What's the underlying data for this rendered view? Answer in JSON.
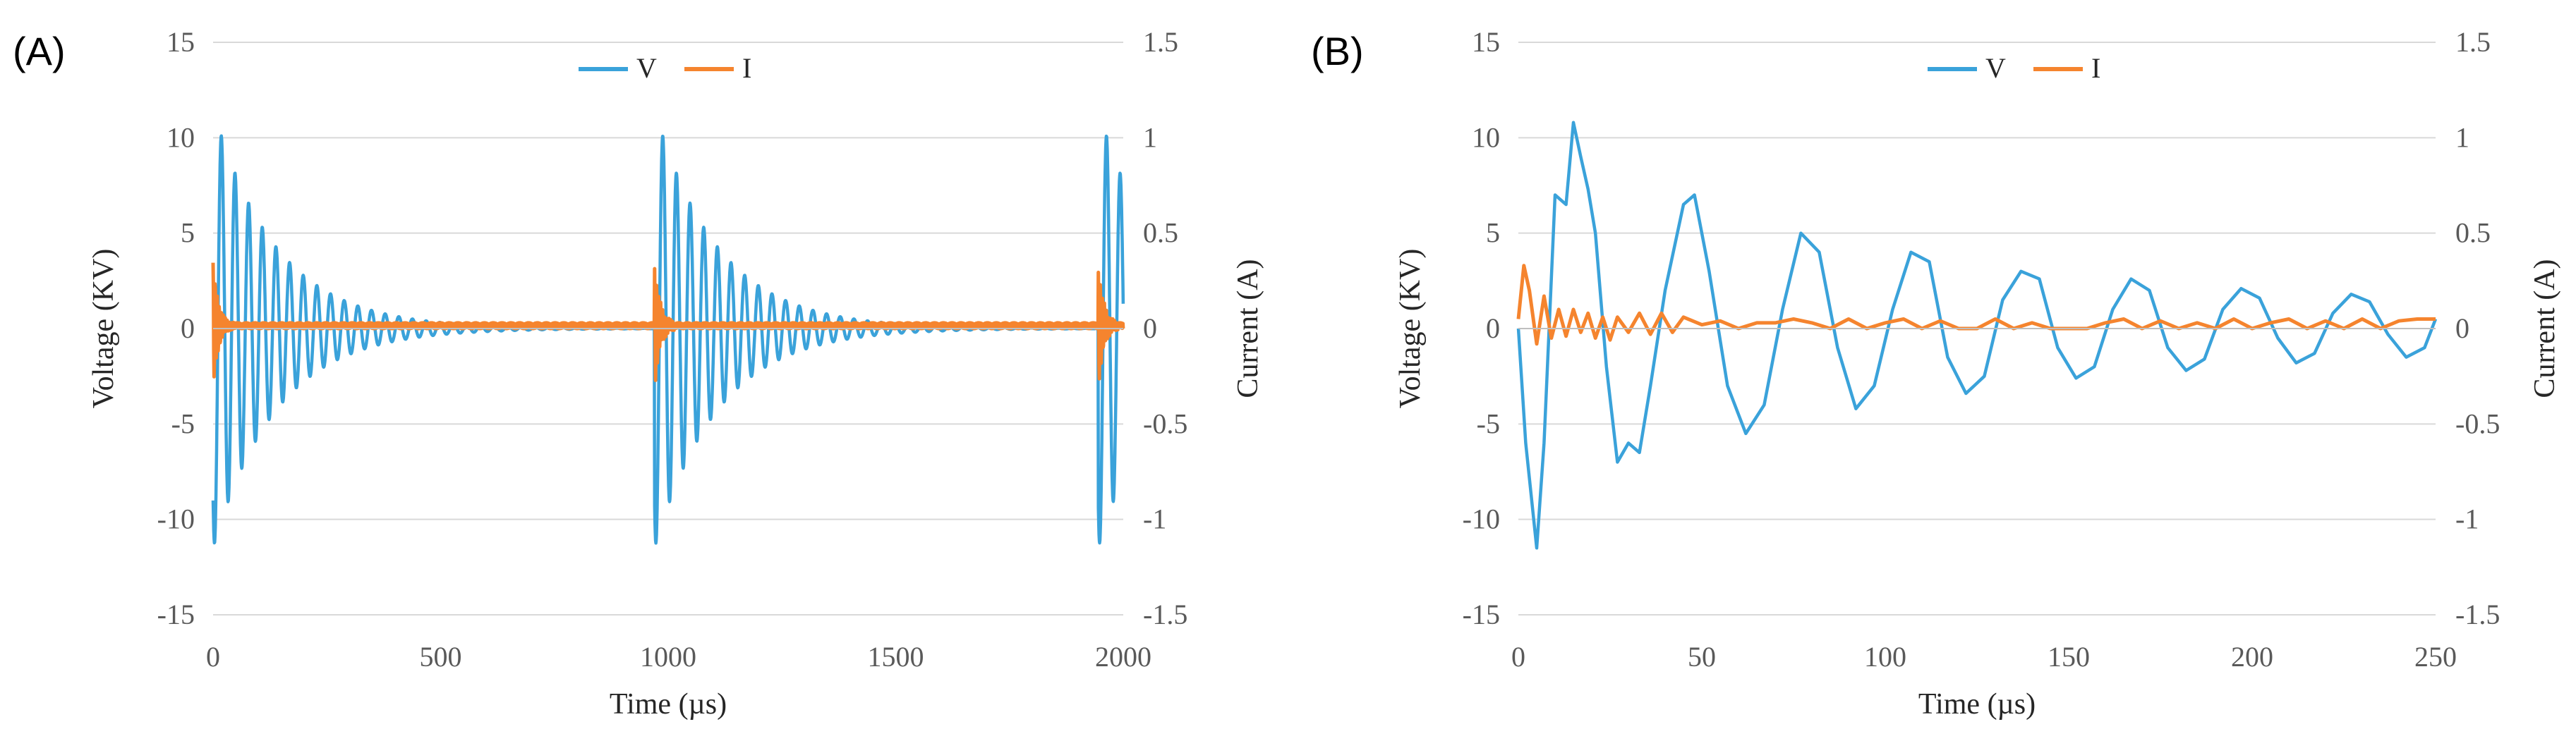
{
  "chart_data": [
    {
      "panel_label": "(A)",
      "type": "line",
      "x_label": "Time (µs)",
      "y_label": "Voltage (KV)",
      "y2_label": "Current (A)",
      "xlim": [
        0,
        2000
      ],
      "ylim": [
        -15,
        15
      ],
      "y2lim": [
        -1.5,
        1.5
      ],
      "x_ticks": [
        "0",
        "500",
        "1000",
        "1500",
        "2000"
      ],
      "y_ticks": [
        "15",
        "10",
        "5",
        "0",
        "-5",
        "-10",
        "-15"
      ],
      "y2_ticks": [
        "1.5",
        "1",
        "0.5",
        "0",
        "-0.5",
        "-1",
        "-1.5"
      ],
      "legend": [
        "V",
        "I"
      ],
      "grid": true,
      "series": [
        {
          "name": "V",
          "axis": "left",
          "color": "#3AA2DA",
          "model": "damped_bursts",
          "burst_starts_us": [
            0,
            970,
            1945
          ],
          "peak_kv": 11.5,
          "period_us": 30,
          "decay_us": 140
        },
        {
          "name": "I",
          "axis": "right",
          "color": "#F5842E",
          "model": "pulse_bursts",
          "burst_starts_us": [
            0,
            970,
            1945
          ],
          "peak_a": 0.33,
          "baseline_a": 0.03
        }
      ]
    },
    {
      "panel_label": "(B)",
      "type": "line",
      "x_label": "Time (µs)",
      "y_label": "Voltage (KV)",
      "y2_label": "Current (A)",
      "xlim": [
        0,
        250
      ],
      "ylim": [
        -15,
        15
      ],
      "y2lim": [
        -1.5,
        1.5
      ],
      "x_ticks": [
        "0",
        "50",
        "100",
        "150",
        "200",
        "250"
      ],
      "y_ticks": [
        "15",
        "10",
        "5",
        "0",
        "-5",
        "-10",
        "-15"
      ],
      "y2_ticks": [
        "1.5",
        "1",
        "0.5",
        "0",
        "-0.5",
        "-1",
        "-1.5"
      ],
      "legend": [
        "V",
        "I"
      ],
      "grid": true,
      "series": [
        {
          "name": "V",
          "axis": "left",
          "color": "#3AA2DA",
          "x": [
            0,
            2,
            5,
            7,
            10,
            13,
            15,
            17,
            19,
            21,
            24,
            27,
            30,
            33,
            36,
            40,
            45,
            48,
            52,
            57,
            62,
            67,
            72,
            77,
            82,
            87,
            92,
            97,
            102,
            107,
            112,
            117,
            122,
            127,
            132,
            137,
            142,
            147,
            152,
            157,
            162,
            167,
            172,
            177,
            182,
            187,
            192,
            197,
            202,
            207,
            212,
            217,
            222,
            227,
            232,
            237,
            242,
            247,
            250
          ],
          "y": [
            0,
            -6,
            -11.5,
            -6,
            7,
            6.5,
            10.8,
            9,
            7.3,
            5,
            -2,
            -7,
            -6,
            -6.5,
            -3,
            2,
            6.5,
            7,
            3,
            -3,
            -5.5,
            -4,
            1,
            5,
            4,
            -1,
            -4.2,
            -3,
            1,
            4,
            3.5,
            -1.5,
            -3.4,
            -2.5,
            1.5,
            3,
            2.6,
            -1,
            -2.6,
            -2,
            1,
            2.6,
            2,
            -1,
            -2.2,
            -1.6,
            1,
            2.1,
            1.6,
            -0.5,
            -1.8,
            -1.3,
            0.8,
            1.8,
            1.4,
            -0.3,
            -1.5,
            -1,
            0.5
          ]
        },
        {
          "name": "I",
          "axis": "right",
          "color": "#F5842E",
          "x": [
            0,
            1.5,
            3,
            5,
            7,
            9,
            11,
            13,
            15,
            17,
            19,
            21,
            23,
            25,
            27,
            30,
            33,
            36,
            39,
            42,
            45,
            50,
            55,
            60,
            65,
            70,
            75,
            80,
            85,
            90,
            95,
            100,
            105,
            110,
            115,
            120,
            125,
            130,
            135,
            140,
            145,
            150,
            155,
            160,
            165,
            170,
            175,
            180,
            185,
            190,
            195,
            200,
            205,
            210,
            215,
            220,
            225,
            230,
            235,
            240,
            245,
            250
          ],
          "y": [
            0.05,
            0.33,
            0.2,
            -0.08,
            0.17,
            -0.05,
            0.1,
            -0.04,
            0.1,
            -0.02,
            0.08,
            -0.05,
            0.06,
            -0.06,
            0.06,
            -0.02,
            0.08,
            -0.03,
            0.08,
            -0.02,
            0.06,
            0.02,
            0.04,
            0.0,
            0.03,
            0.03,
            0.05,
            0.03,
            0.0,
            0.05,
            0.0,
            0.03,
            0.05,
            0.0,
            0.04,
            0.0,
            0.0,
            0.05,
            0.0,
            0.03,
            0.0,
            0.0,
            0.0,
            0.03,
            0.05,
            0.0,
            0.04,
            0.0,
            0.03,
            0.0,
            0.05,
            0.0,
            0.03,
            0.05,
            0.0,
            0.04,
            0.0,
            0.05,
            0.0,
            0.04,
            0.05,
            0.05
          ]
        }
      ]
    }
  ]
}
